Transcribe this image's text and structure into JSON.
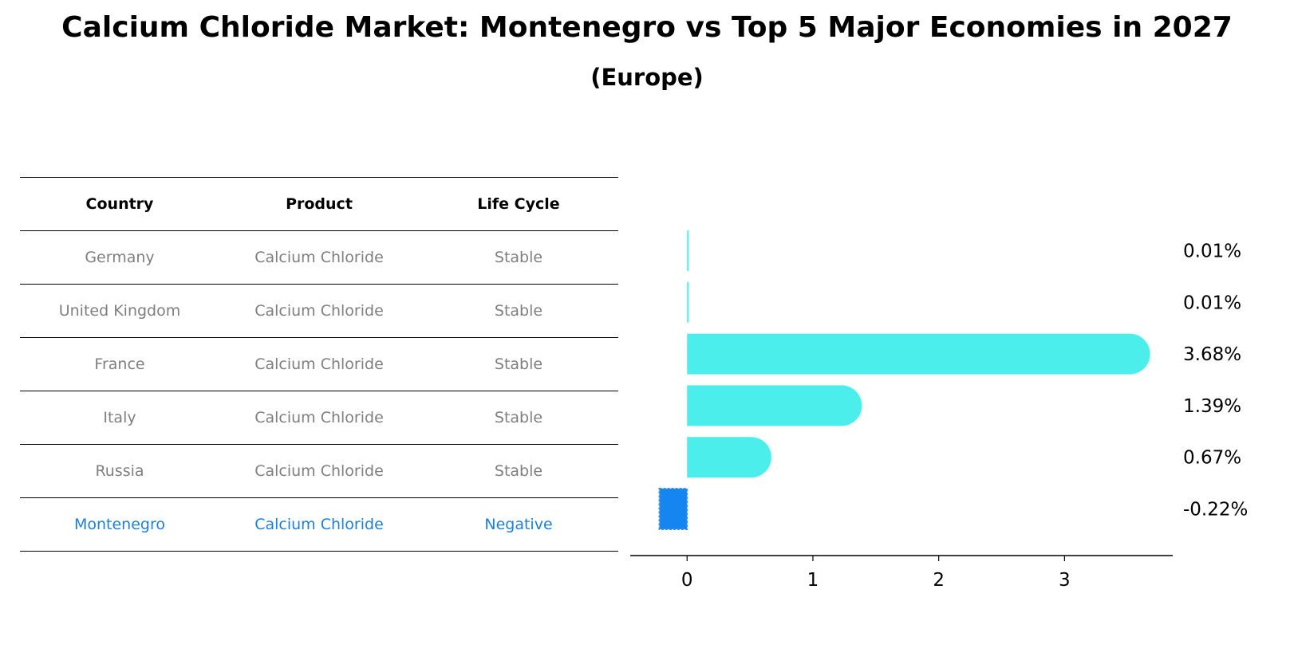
{
  "title": "Calcium Chloride Market: Montenegro vs Top 5 Major Economies in 2027",
  "subtitle": "(Europe)",
  "table": {
    "headers": [
      "Country",
      "Product",
      "Life Cycle"
    ],
    "rows": [
      [
        "Germany",
        "Calcium Chloride",
        "Stable"
      ],
      [
        "United Kingdom",
        "Calcium Chloride",
        "Stable"
      ],
      [
        "France",
        "Calcium Chloride",
        "Stable"
      ],
      [
        "Italy",
        "Calcium Chloride",
        "Stable"
      ],
      [
        "Russia",
        "Calcium Chloride",
        "Stable"
      ],
      [
        "Montenegro",
        "Calcium Chloride",
        "Negative"
      ]
    ],
    "highlight_row": 5
  },
  "colors": {
    "highlight_text": "#1f7fd6",
    "normal_text": "#7f7f7f",
    "bar": "#4ceeec",
    "bar_highlight": "#1585f0"
  },
  "chart_data": {
    "type": "bar",
    "orientation": "horizontal",
    "categories": [
      "Germany",
      "United Kingdom",
      "France",
      "Italy",
      "Russia",
      "Montenegro"
    ],
    "values": [
      0.01,
      0.01,
      3.68,
      1.39,
      0.67,
      -0.22
    ],
    "data_labels": [
      "0.01%",
      "0.01%",
      "3.68%",
      "1.39%",
      "0.67%",
      "-0.22%"
    ],
    "xticks": [
      0,
      1,
      2,
      3
    ],
    "xlim": [
      -0.42,
      3.86
    ],
    "grid": false
  }
}
